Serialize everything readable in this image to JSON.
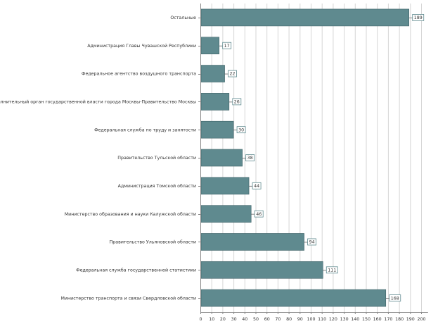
{
  "chart_data": {
    "type": "bar",
    "orientation": "horizontal",
    "title": "",
    "xlabel": "",
    "ylabel": "",
    "xlim": [
      0,
      205
    ],
    "ticks": [
      0,
      10,
      20,
      30,
      40,
      50,
      60,
      70,
      80,
      90,
      100,
      110,
      120,
      130,
      140,
      150,
      160,
      170,
      180,
      190,
      200
    ],
    "grid": true,
    "bar_color": "#5f8a8f",
    "categories": [
      "Остальные",
      "Администрация Главы Чувашской Республики",
      "Федеральное агентство воздушного транспорта",
      "Высший исполнительный орган государственной власти города Москвы-Правительство Москвы",
      "Федеральная служба по труду и занятости",
      "Правительство Тульской области",
      "Администрация Томской области",
      "Министерство образования и науки Калужской области",
      "Правительство Ульяновской области",
      "Федеральная служба государственной статистики",
      "Министерство транспорта и связи Свердловской области"
    ],
    "values": [
      189,
      17,
      22,
      26,
      30,
      38,
      44,
      46,
      94,
      111,
      168
    ]
  }
}
